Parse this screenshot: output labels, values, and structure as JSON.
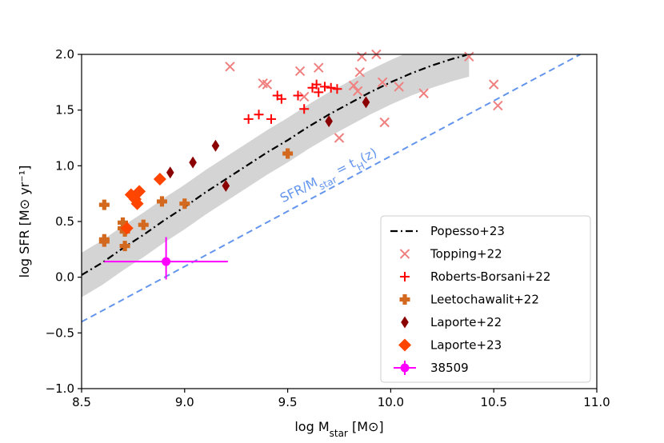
{
  "chart_data": {
    "type": "scatter",
    "xlabel": "log M_star [M⊙]",
    "ylabel": "log SFR [M⊙ yr⁻¹]",
    "xlim": [
      8.5,
      11.0
    ],
    "ylim": [
      -1.0,
      2.0
    ],
    "xticks": [
      "8.5",
      "9.0",
      "9.5",
      "10.0",
      "10.5",
      "11.0"
    ],
    "yticks": [
      "−1.0",
      "−0.5",
      "0.0",
      "0.5",
      "1.0",
      "1.5",
      "2.0"
    ],
    "grid": false,
    "legend_position": "lower-right",
    "annotation": {
      "text": "SFR/M_star = t_H(z)",
      "color": "#6495ed"
    },
    "lines": [
      {
        "name": "Popesso+23",
        "style": "dashdot",
        "color": "#000000",
        "x": [
          8.5,
          8.6,
          8.7,
          8.8,
          8.9,
          9.0,
          9.1,
          9.2,
          9.3,
          9.4,
          9.5,
          9.6,
          9.7,
          9.8,
          9.9,
          10.0,
          10.1,
          10.2,
          10.3,
          10.38
        ],
        "y": [
          0.02,
          0.13,
          0.26,
          0.38,
          0.51,
          0.63,
          0.76,
          0.88,
          1.0,
          1.12,
          1.23,
          1.35,
          1.46,
          1.56,
          1.66,
          1.75,
          1.83,
          1.9,
          1.96,
          2.0
        ],
        "band_halfwidth": 0.2,
        "band_color": "#d4d4d4"
      },
      {
        "name": "",
        "style": "dashed",
        "color": "#6495ed",
        "x": [
          8.5,
          10.92
        ],
        "y": [
          -0.4,
          2.0
        ]
      }
    ],
    "series": [
      {
        "name": "Topping+22",
        "marker": "x",
        "color": "#f08080",
        "points": [
          [
            9.22,
            1.89
          ],
          [
            9.38,
            1.74
          ],
          [
            9.4,
            1.73
          ],
          [
            9.56,
            1.85
          ],
          [
            9.65,
            1.88
          ],
          [
            9.58,
            1.62
          ],
          [
            9.75,
            1.25
          ],
          [
            9.82,
            1.72
          ],
          [
            9.84,
            1.67
          ],
          [
            9.85,
            1.84
          ],
          [
            9.86,
            1.98
          ],
          [
            9.93,
            2.0
          ],
          [
            9.96,
            1.75
          ],
          [
            9.97,
            1.39
          ],
          [
            10.04,
            1.71
          ],
          [
            10.16,
            1.65
          ],
          [
            10.38,
            1.98
          ],
          [
            10.5,
            1.73
          ],
          [
            10.52,
            1.54
          ]
        ]
      },
      {
        "name": "Roberts-Borsani+22",
        "marker": "plus",
        "color": "#ff0000",
        "points": [
          [
            9.31,
            1.42
          ],
          [
            9.36,
            1.46
          ],
          [
            9.42,
            1.42
          ],
          [
            9.45,
            1.63
          ],
          [
            9.47,
            1.6
          ],
          [
            9.55,
            1.63
          ],
          [
            9.58,
            1.51
          ],
          [
            9.62,
            1.7
          ],
          [
            9.64,
            1.73
          ],
          [
            9.65,
            1.66
          ],
          [
            9.68,
            1.71
          ],
          [
            9.71,
            1.7
          ],
          [
            9.74,
            1.69
          ]
        ]
      },
      {
        "name": "Leetochawalit+22",
        "marker": "thickplus",
        "color": "#d2691e",
        "points": [
          [
            8.61,
            0.65
          ],
          [
            8.61,
            0.34
          ],
          [
            8.61,
            0.32
          ],
          [
            8.7,
            0.49
          ],
          [
            8.7,
            0.44
          ],
          [
            8.71,
            0.41
          ],
          [
            8.71,
            0.28
          ],
          [
            8.8,
            0.47
          ],
          [
            8.89,
            0.68
          ],
          [
            9.0,
            0.66
          ],
          [
            9.5,
            1.11
          ]
        ]
      },
      {
        "name": "Laporte+22",
        "marker": "thin_diamond",
        "color": "#8b0000",
        "points": [
          [
            8.93,
            0.94
          ],
          [
            9.04,
            1.03
          ],
          [
            9.15,
            1.18
          ],
          [
            9.2,
            0.82
          ],
          [
            9.7,
            1.4
          ],
          [
            9.88,
            1.57
          ]
        ]
      },
      {
        "name": "Laporte+23",
        "marker": "diamond",
        "color": "#ff4500",
        "points": [
          [
            8.72,
            0.44
          ],
          [
            8.74,
            0.74
          ],
          [
            8.76,
            0.7
          ],
          [
            8.77,
            0.66
          ],
          [
            8.78,
            0.77
          ],
          [
            8.88,
            0.88
          ]
        ]
      },
      {
        "name": "38509",
        "marker": "circle_errorbar",
        "color": "#ff00ff",
        "points": [
          [
            8.91,
            0.14
          ]
        ],
        "xerr": [
          0.3,
          0.3
        ],
        "yerr": [
          0.16,
          0.22
        ]
      }
    ]
  }
}
